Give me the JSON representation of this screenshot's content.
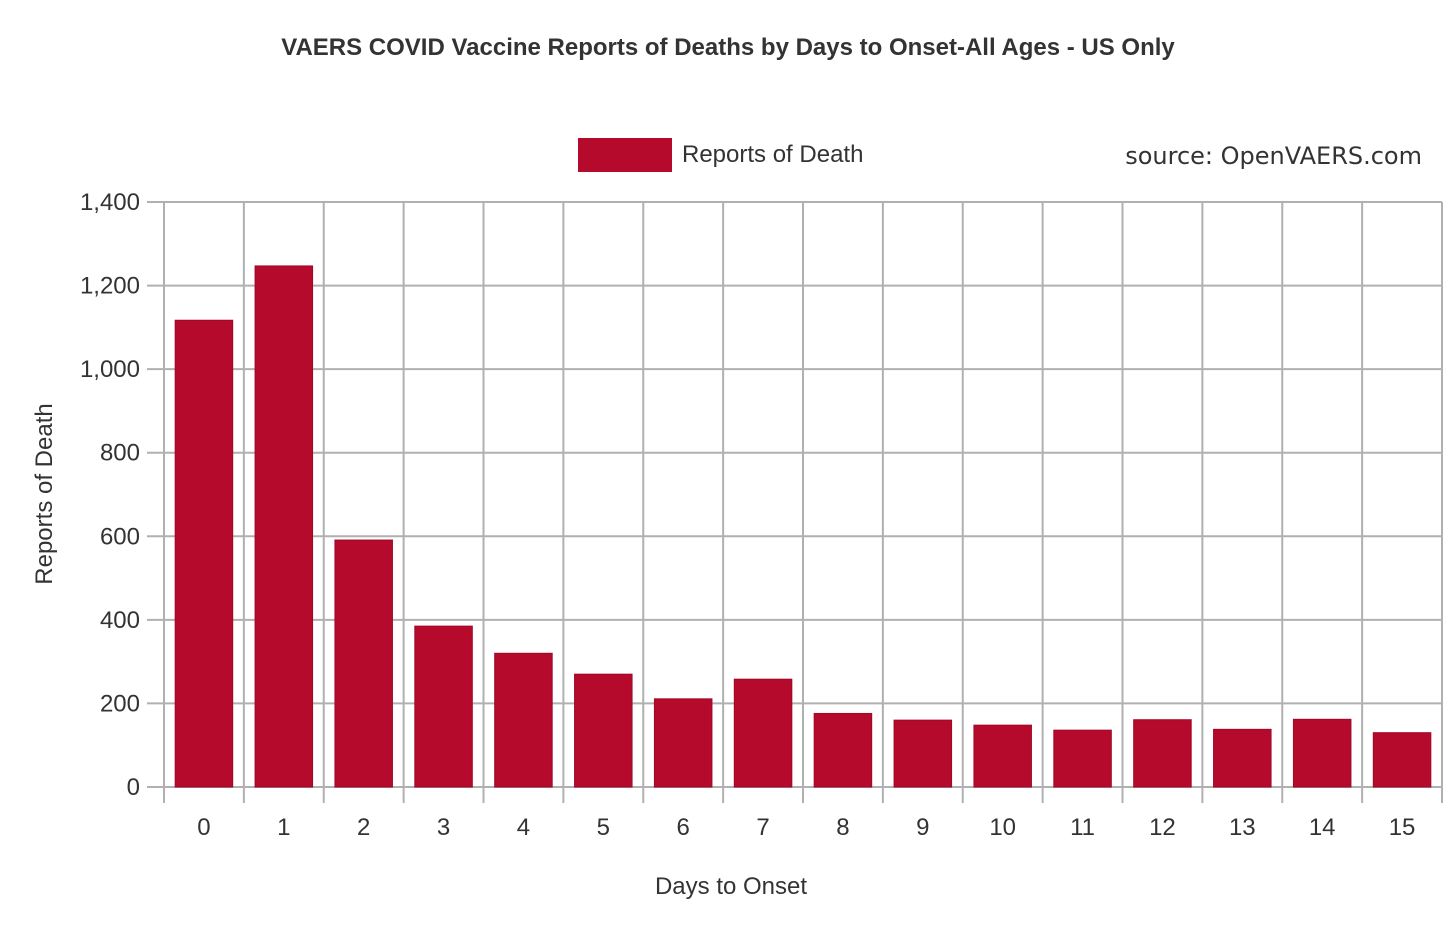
{
  "chart_data": {
    "type": "bar",
    "title": "VAERS COVID Vaccine Reports of Deaths by Days to Onset-All Ages - US Only",
    "source": "source: OpenVAERS.com",
    "xlabel": "Days to Onset",
    "ylabel": "Reports of Death",
    "categories": [
      "0",
      "1",
      "2",
      "3",
      "4",
      "5",
      "6",
      "7",
      "8",
      "9",
      "10",
      "11",
      "12",
      "13",
      "14",
      "15"
    ],
    "series": [
      {
        "name": "Reports of Death",
        "color": "#b50a2c",
        "values": [
          1117,
          1247,
          591,
          385,
          320,
          270,
          211,
          258,
          176,
          160,
          148,
          136,
          161,
          138,
          162,
          130
        ]
      }
    ],
    "ylim": [
      0,
      1400
    ],
    "yticks": [
      0,
      200,
      400,
      600,
      800,
      1000,
      1200,
      1400
    ],
    "ytick_labels": [
      "0",
      "200",
      "400",
      "600",
      "800",
      "1,000",
      "1,200",
      "1,400"
    ],
    "legend_position": "top-center",
    "grid": true
  }
}
